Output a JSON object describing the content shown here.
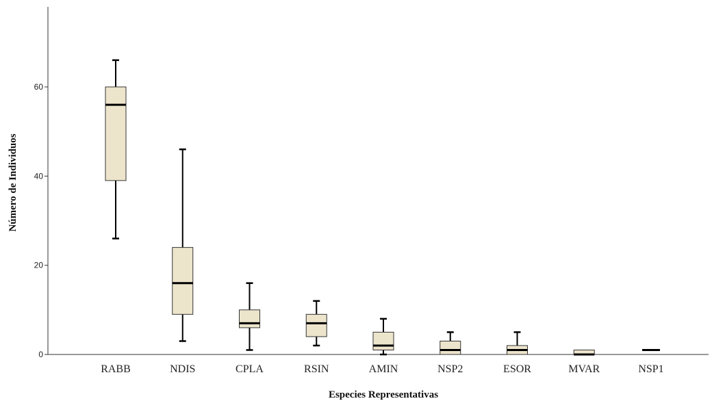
{
  "chart_data": {
    "type": "boxplot",
    "xlabel": "Especies Representativas",
    "ylabel": "Número de Individuos",
    "ylim": [
      0,
      76
    ],
    "yticks": [
      0,
      20,
      40,
      60
    ],
    "grid": false,
    "box_fill": "#ede4cc",
    "categories": [
      "RABB",
      "NDIS",
      "CPLA",
      "RSIN",
      "AMIN",
      "NSP2",
      "ESOR",
      "MVAR",
      "NSP1"
    ],
    "boxes": [
      {
        "min": 26,
        "q1": 39,
        "median": 56,
        "q3": 60,
        "max": 66
      },
      {
        "min": 3,
        "q1": 9,
        "median": 16,
        "q3": 24,
        "max": 46
      },
      {
        "min": 1,
        "q1": 6,
        "median": 7,
        "q3": 10,
        "max": 16
      },
      {
        "min": 2,
        "q1": 4,
        "median": 7,
        "q3": 9,
        "max": 12
      },
      {
        "min": 0,
        "q1": 1,
        "median": 2,
        "q3": 5,
        "max": 8
      },
      {
        "min": 0,
        "q1": 0,
        "median": 1,
        "q3": 3,
        "max": 5
      },
      {
        "min": 0,
        "q1": 0,
        "median": 1,
        "q3": 2,
        "max": 5
      },
      {
        "min": 0,
        "q1": 0,
        "median": 0,
        "q3": 1,
        "max": 1
      },
      {
        "min": 1,
        "q1": 1,
        "median": 1,
        "q3": 1,
        "max": 1
      }
    ]
  }
}
